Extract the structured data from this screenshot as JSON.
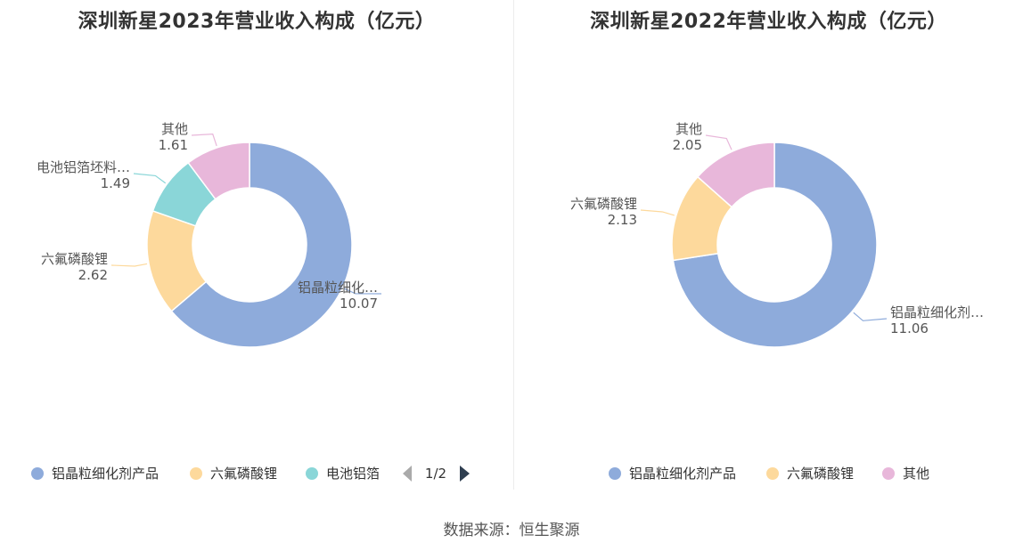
{
  "source": "数据来源：恒生聚源",
  "chart_data": [
    {
      "type": "pie",
      "variant": "donut",
      "title": "深圳新星2023年营业收入构成（亿元）",
      "slices": [
        {
          "label": "铝晶粒细化…",
          "value": 10.07,
          "color": "#8eabdb"
        },
        {
          "label": "六氟磷酸锂",
          "value": 2.62,
          "color": "#fdd99c"
        },
        {
          "label": "电池铝箔坯料…",
          "value": 1.49,
          "color": "#8ad6d8"
        },
        {
          "label": "其他",
          "value": 1.61,
          "color": "#e8b7da"
        }
      ],
      "legend": {
        "position": "bottom",
        "items": [
          {
            "label": "铝晶粒细化剂产品",
            "color": "#8eabdb"
          },
          {
            "label": "六氟磷酸锂",
            "color": "#fdd99c"
          },
          {
            "label": "电池铝箔",
            "color": "#8ad6d8"
          }
        ],
        "pager": "1/2"
      }
    },
    {
      "type": "pie",
      "variant": "donut",
      "title": "深圳新星2022年营业收入构成（亿元）",
      "slices": [
        {
          "label": "铝晶粒细化剂…",
          "value": 11.06,
          "color": "#8eabdb"
        },
        {
          "label": "六氟磷酸锂",
          "value": 2.13,
          "color": "#fdd99c"
        },
        {
          "label": "其他",
          "value": 2.05,
          "color": "#e8b7da"
        }
      ],
      "legend": {
        "position": "bottom",
        "items": [
          {
            "label": "铝晶粒细化剂产品",
            "color": "#8eabdb"
          },
          {
            "label": "六氟磷酸锂",
            "color": "#fdd99c"
          },
          {
            "label": "其他",
            "color": "#e8b7da"
          }
        ]
      }
    }
  ]
}
